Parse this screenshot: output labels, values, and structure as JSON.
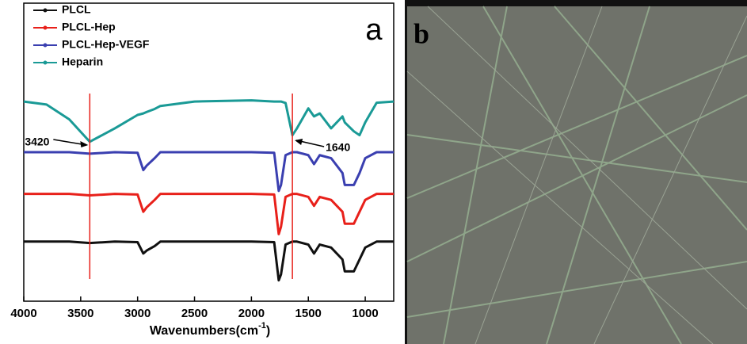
{
  "chart_data": {
    "type": "line",
    "panel_label": "a",
    "xlabel": "Wavenumbers(cm",
    "xlabel_sup": "-1",
    "xlabel_end": ")",
    "x": [
      4000,
      3800,
      3600,
      3420,
      3200,
      3000,
      2950,
      2920,
      2850,
      2800,
      2500,
      2000,
      1800,
      1760,
      1740,
      1700,
      1640,
      1600,
      1500,
      1450,
      1400,
      1300,
      1200,
      1180,
      1100,
      1050,
      1000,
      900,
      750
    ],
    "series": [
      {
        "name": "PLCL",
        "color": "#111111",
        "values": [
          20,
          20,
          20,
          19.5,
          20,
          19.8,
          16,
          17,
          18.5,
          20,
          20,
          20,
          19.8,
          7,
          9,
          19,
          20,
          20,
          19,
          16,
          19,
          18,
          14,
          10,
          10,
          14,
          18,
          20,
          20
        ]
      },
      {
        "name": "PLCL-Hep",
        "color": "#e8201a",
        "values": [
          36,
          36,
          36,
          35.5,
          36,
          35.8,
          30,
          31.5,
          34,
          36,
          36,
          36,
          35.8,
          22.5,
          25,
          35,
          36,
          36,
          35,
          32,
          35,
          34,
          30,
          26,
          26,
          30,
          34,
          36,
          36
        ]
      },
      {
        "name": "PLCL-Hep-VEGF",
        "color": "#3a3fb0",
        "values": [
          50,
          50,
          50,
          49.5,
          50,
          49.8,
          44,
          45.5,
          48,
          50,
          50,
          50,
          49.8,
          37,
          39,
          49,
          50,
          50,
          49,
          46,
          49,
          48,
          43,
          39,
          39,
          43,
          48,
          50,
          50
        ]
      },
      {
        "name": "Heparin",
        "color": "#1a9a96",
        "values": [
          67,
          66,
          61,
          53.5,
          58,
          62.5,
          63,
          63.5,
          64.5,
          65.5,
          67,
          67.4,
          67,
          67,
          67,
          66.5,
          55.7,
          58,
          64.7,
          62,
          63,
          58,
          62,
          60,
          57,
          55.7,
          60,
          66.6,
          67
        ]
      }
    ],
    "xlim": [
      4000,
      750
    ],
    "ylim": [
      0,
      100
    ],
    "xticks": [
      4000,
      3500,
      3000,
      2500,
      2000,
      1500,
      1000
    ],
    "vlines": [
      3420,
      1640
    ],
    "vline_color": "#e8201a",
    "annotations": [
      "3420",
      "1640"
    ],
    "legend": "top-left"
  },
  "image_panel": {
    "label": "b"
  }
}
